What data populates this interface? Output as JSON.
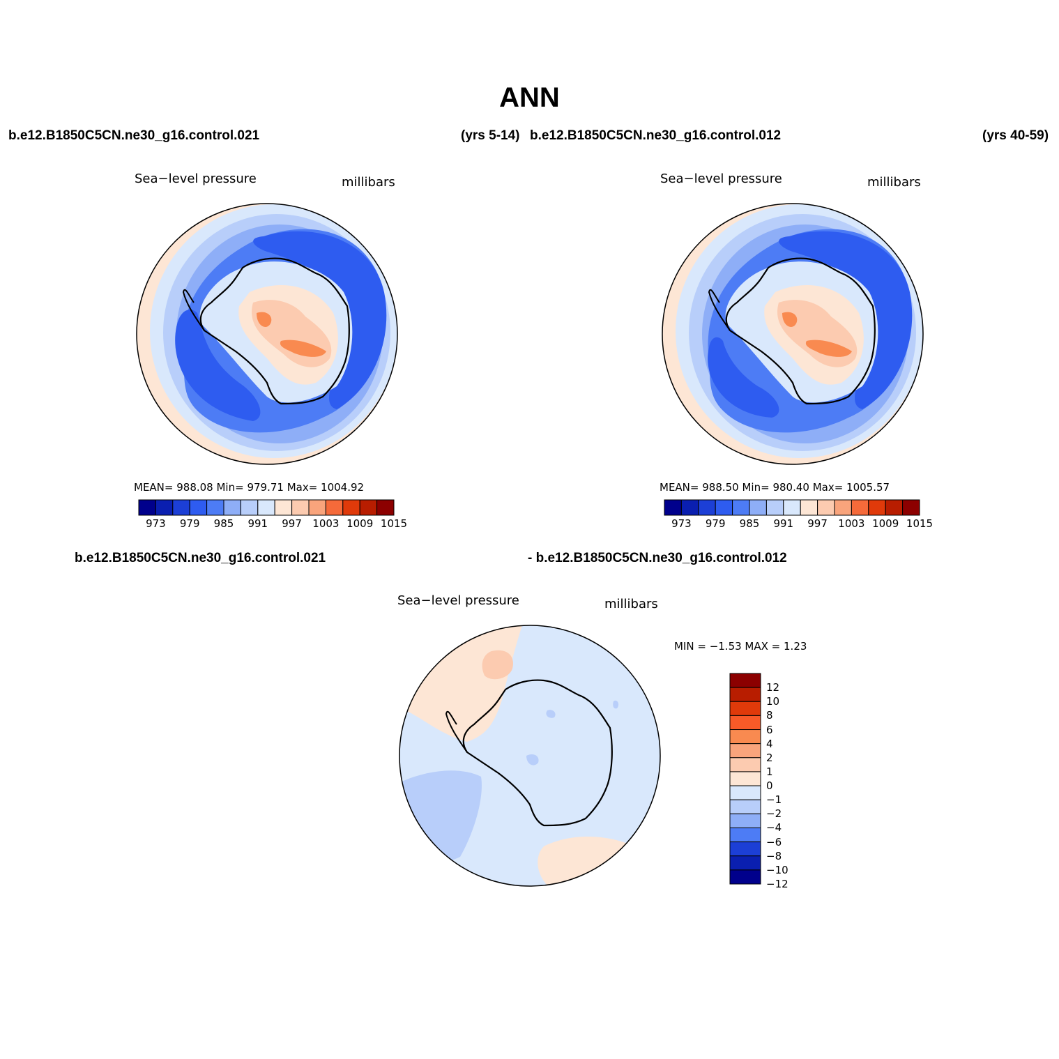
{
  "title": "ANN",
  "header": {
    "case1": "b.e12.B1850C5CN.ne30_g16.control.021",
    "years1": "(yrs 5-14)",
    "case2": "b.e12.B1850C5CN.ne30_g16.control.012",
    "years2": "(yrs 40-59)"
  },
  "panels": [
    {
      "variable": "Sea−level pressure",
      "units": "millibars",
      "stats": "MEAN= 988.08   Min= 979.71   Max= 1004.92",
      "colorbar_ticks": [
        "973",
        "979",
        "985",
        "991",
        "997",
        "1003",
        "1009",
        "1015"
      ]
    },
    {
      "variable": "Sea−level pressure",
      "units": "millibars",
      "stats": "MEAN= 988.50   Min= 980.40   Max= 1005.57",
      "colorbar_ticks": [
        "973",
        "979",
        "985",
        "991",
        "997",
        "1003",
        "1009",
        "1015"
      ]
    }
  ],
  "diff": {
    "case1": "b.e12.B1850C5CN.ne30_g16.control.021",
    "case2": "- b.e12.B1850C5CN.ne30_g16.control.012",
    "variable": "Sea−level pressure",
    "units": "millibars",
    "minmax": "MIN =   −1.53  MAX =     1.23",
    "colorbar_labels": [
      "12",
      "10",
      "8",
      "6",
      "4",
      "2",
      "1",
      "0",
      "−1",
      "−2",
      "−4",
      "−6",
      "−8",
      "−10",
      "−12"
    ]
  },
  "colors": {
    "abs_scale": [
      "#00008c",
      "#0a1fb0",
      "#1c3fd6",
      "#2e5cf0",
      "#4d7cf5",
      "#8eaef7",
      "#b8cefa",
      "#d9e8fc",
      "#fde6d5",
      "#fccbb0",
      "#f9a47c",
      "#f56a3a",
      "#e03a0a",
      "#b81d00",
      "#8c0000"
    ],
    "diff_scale": [
      "#8c0000",
      "#b81d00",
      "#e03a0a",
      "#f85a28",
      "#f98a50",
      "#f9a47c",
      "#fccbb0",
      "#fde6d5",
      "#d9e8fc",
      "#b8cefa",
      "#8eaef7",
      "#4d7cf5",
      "#1c3fd6",
      "#0a1fb0",
      "#00008c"
    ]
  },
  "map_layers": [
    {
      "name": "outer-ring",
      "color": "#fde6d5"
    },
    {
      "name": "pale-blue",
      "color": "#d9e8fc"
    },
    {
      "name": "light-blue",
      "color": "#b8cefa"
    },
    {
      "name": "mid-blue",
      "color": "#8eaef7"
    },
    {
      "name": "blue",
      "color": "#4d7cf5"
    },
    {
      "name": "deep-blue",
      "color": "#2e5cf0"
    }
  ]
}
